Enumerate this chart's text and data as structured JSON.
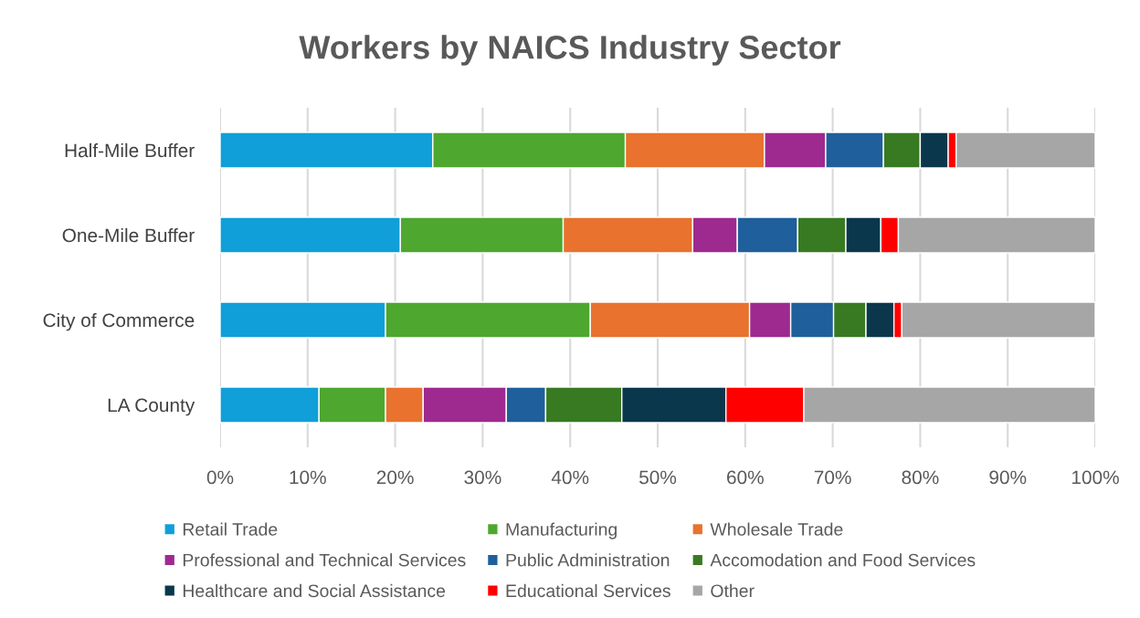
{
  "chart_data": {
    "type": "bar",
    "title": "Workers by NAICS Industry Sector",
    "orientation": "horizontal",
    "stacked": true,
    "categories": [
      "Half-Mile Buffer",
      "One-Mile Buffer",
      "City of Commerce",
      "LA County"
    ],
    "series": [
      {
        "name": "Retail Trade",
        "color": "#109fd8",
        "values": [
          24.3,
          20.6,
          18.9,
          11.3
        ]
      },
      {
        "name": "Manufacturing",
        "color": "#4ea72e",
        "values": [
          22.0,
          18.6,
          23.4,
          7.6
        ]
      },
      {
        "name": "Wholesale Trade",
        "color": "#e8722e",
        "values": [
          15.9,
          14.8,
          18.2,
          4.3
        ]
      },
      {
        "name": "Professional and Technical Services",
        "color": "#9e2a8f",
        "values": [
          7.0,
          5.1,
          4.7,
          9.5
        ]
      },
      {
        "name": "Public Administration",
        "color": "#1f5f9b",
        "values": [
          6.6,
          6.9,
          4.9,
          4.5
        ]
      },
      {
        "name": "Accomodation and Food Services",
        "color": "#387a22",
        "values": [
          4.2,
          5.5,
          3.7,
          8.7
        ]
      },
      {
        "name": "Healthcare and Social Assistance",
        "color": "#0b374d",
        "values": [
          3.2,
          4.0,
          3.2,
          11.9
        ]
      },
      {
        "name": "Educational Services",
        "color": "#ff0000",
        "values": [
          0.9,
          2.0,
          0.9,
          8.9
        ]
      },
      {
        "name": "Other",
        "color": "#a6a6a6",
        "values": [
          15.9,
          22.5,
          22.1,
          33.3
        ]
      }
    ],
    "xlim": [
      0,
      100
    ],
    "xticks": [
      {
        "value": 0,
        "label": "0%"
      },
      {
        "value": 10,
        "label": "10%"
      },
      {
        "value": 20,
        "label": "20%"
      },
      {
        "value": 30,
        "label": "30%"
      },
      {
        "value": 40,
        "label": "40%"
      },
      {
        "value": 50,
        "label": "50%"
      },
      {
        "value": 60,
        "label": "60%"
      },
      {
        "value": 70,
        "label": "70%"
      },
      {
        "value": 80,
        "label": "80%"
      },
      {
        "value": 90,
        "label": "90%"
      },
      {
        "value": 100,
        "label": "100%"
      }
    ],
    "grid": "x",
    "legend": "bottom"
  }
}
